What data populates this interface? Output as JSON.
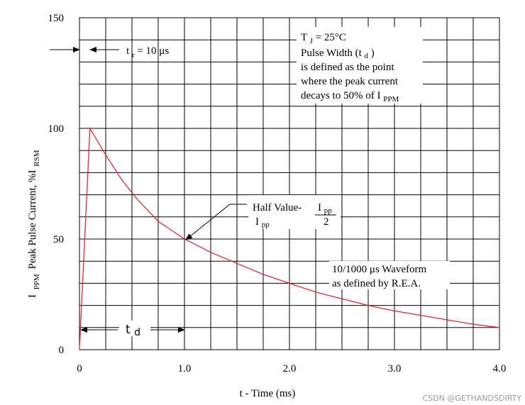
{
  "chart_data": {
    "type": "line",
    "xlabel": "t - Time (ms)",
    "ylabel_parts": {
      "i": "I",
      "ppm": "PPM",
      "main": "Peak Pulse Current, %I",
      "rsm": "RSM"
    },
    "xlim": [
      0,
      4.0
    ],
    "ylim": [
      0,
      150
    ],
    "x_ticks": [
      "0",
      "1.0",
      "2.0",
      "3.0",
      "4.0"
    ],
    "y_ticks": [
      "0",
      "50",
      "100",
      "150"
    ],
    "grid": true,
    "series": [
      {
        "color": "#e8252b",
        "x": [
          0,
          0.1,
          0.25,
          0.4,
          0.55,
          0.75,
          1.0,
          1.25,
          1.5,
          1.75,
          2.0,
          2.25,
          2.5,
          2.75,
          3.0,
          3.25,
          3.5,
          3.75,
          4.0
        ],
        "y": [
          0,
          100,
          88,
          77,
          68,
          58,
          50,
          44,
          39,
          34,
          30,
          26,
          23,
          20,
          17.5,
          15.5,
          13.5,
          11.5,
          10
        ]
      }
    ],
    "annotations": {
      "tr": {
        "t": "t",
        "r": "r",
        "value": " = 10 μs"
      },
      "tj": {
        "t": "T",
        "j": "J",
        "value": " = 25°C"
      },
      "pw_line1": "Pulse Width (t",
      "pw_d": "d",
      "pw_close": ")",
      "pw_line2": "is defined as the point",
      "pw_line3": "where the peak current",
      "pw_line4": "decays to 50% of I",
      "pw_ppm": "PPM",
      "half_value": "Half Value-",
      "ipp_i": "I",
      "ipp_pp": "pp",
      "frac_den": "2",
      "waveform_line1": "10/1000 μs Waveform",
      "waveform_line2": "as defined by R.E.A.",
      "td_t": "t",
      "td_d": "d"
    }
  },
  "watermark": "CSDN @GETHANDSDIRTY"
}
